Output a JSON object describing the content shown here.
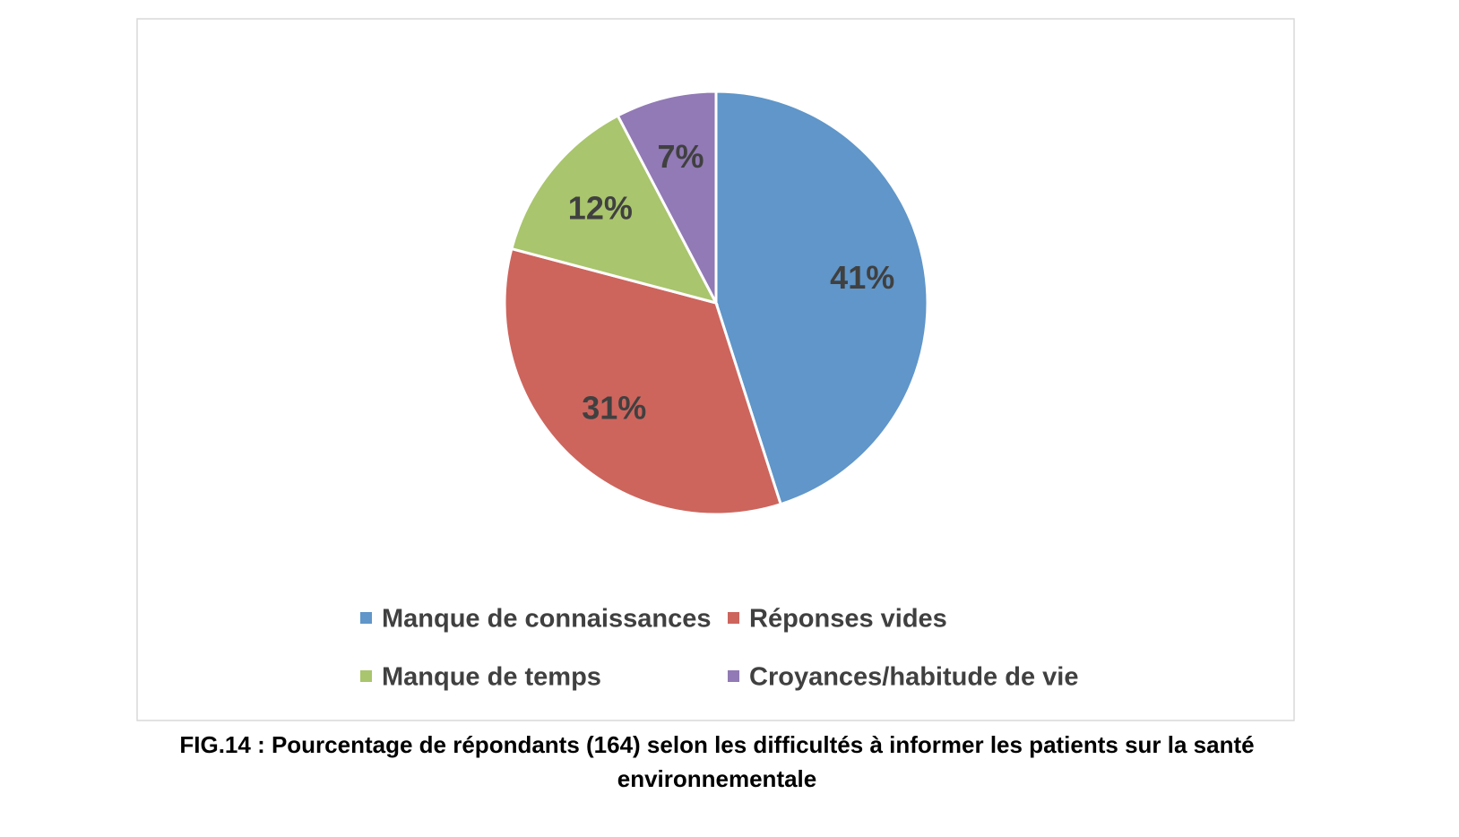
{
  "chart_data": {
    "type": "pie",
    "categories": [
      "Manque de connaissances",
      "Réponses vides",
      "Manque de temps",
      "Croyances/habitude de vie"
    ],
    "values": [
      41,
      31,
      12,
      7
    ],
    "value_labels": [
      "41%",
      "31%",
      "12%",
      "7%"
    ],
    "colors": [
      "#6096c9",
      "#cd655d",
      "#a9c56d",
      "#917ab5"
    ],
    "legend": "bottom"
  },
  "caption": "FIG.14 : Pourcentage de répondants (164) selon les difficultés à informer les patients sur la santé environnementale"
}
